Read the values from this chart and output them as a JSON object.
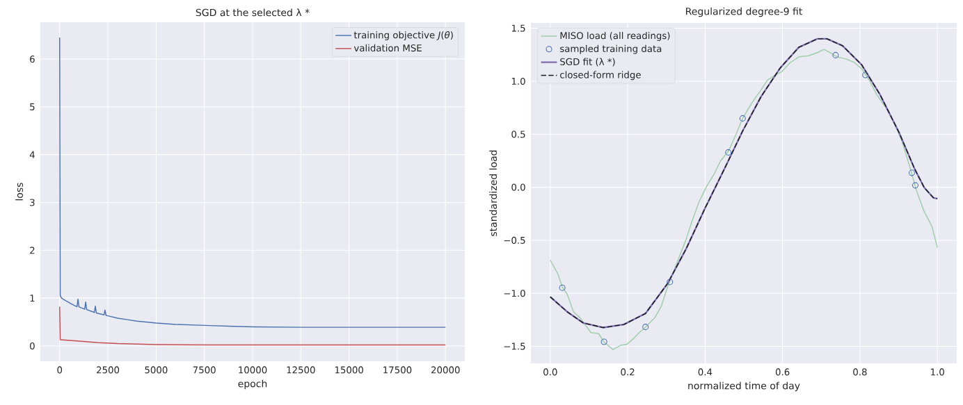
{
  "chart_data": [
    {
      "type": "line",
      "title": "SGD at the selected λ *",
      "xlabel": "epoch",
      "ylabel": "loss",
      "xlim": [
        -1000,
        21000
      ],
      "ylim": [
        -0.32,
        6.77
      ],
      "xticks": [
        0,
        2500,
        5000,
        7500,
        10000,
        12500,
        15000,
        17500,
        20000
      ],
      "yticks": [
        0,
        1,
        2,
        3,
        4,
        5,
        6
      ],
      "grid": true,
      "legend": "top right",
      "series": [
        {
          "name": "training objective *J*(*θ*)",
          "color": "#4c72b0",
          "x": [
            0,
            30,
            100,
            300,
            600,
            900,
            950,
            1000,
            1100,
            1300,
            1350,
            1400,
            1800,
            1850,
            1900,
            2300,
            2350,
            2400,
            2500,
            3000,
            3500,
            4000,
            5000,
            6000,
            7500,
            9000,
            10000,
            12500,
            15000,
            17500,
            20000
          ],
          "values": [
            6.45,
            1.05,
            1.0,
            0.95,
            0.88,
            0.82,
            0.98,
            0.82,
            0.8,
            0.77,
            0.92,
            0.76,
            0.7,
            0.83,
            0.69,
            0.65,
            0.75,
            0.64,
            0.63,
            0.58,
            0.55,
            0.52,
            0.48,
            0.45,
            0.43,
            0.41,
            0.4,
            0.39,
            0.39,
            0.39,
            0.39
          ]
        },
        {
          "name": "validation MSE",
          "color": "#c44e52",
          "x": [
            0,
            30,
            1000,
            2000,
            3000,
            4000,
            5000,
            7500,
            10000,
            15000,
            20000
          ],
          "values": [
            0.82,
            0.13,
            0.1,
            0.07,
            0.05,
            0.04,
            0.03,
            0.02,
            0.02,
            0.02,
            0.02
          ]
        }
      ]
    },
    {
      "type": "line",
      "title": "Regularized degree-9 fit",
      "xlabel": "normalized time of day",
      "ylabel": "standardized load",
      "xlim": [
        -0.05,
        1.05
      ],
      "ylim": [
        -1.66,
        1.55
      ],
      "xticks": [
        {
          "value": 0,
          "label": "0.0"
        },
        {
          "value": 0.2,
          "label": "0.2"
        },
        {
          "value": 0.4,
          "label": "0.4"
        },
        {
          "value": 0.6,
          "label": "0.6"
        },
        {
          "value": 0.8,
          "label": "0.8"
        },
        {
          "value": 1,
          "label": "1.0"
        }
      ],
      "yticks": [
        {
          "value": -1.5,
          "label": "−1.5"
        },
        {
          "value": -1,
          "label": "−1.0"
        },
        {
          "value": -0.5,
          "label": "−0.5"
        },
        {
          "value": 0,
          "label": "0.0"
        },
        {
          "value": 0.5,
          "label": "0.5"
        },
        {
          "value": 1,
          "label": "1.0"
        },
        {
          "value": 1.5,
          "label": "1.5"
        }
      ],
      "grid": true,
      "legend": "top left",
      "series": [
        {
          "name": "MISO load (all readings)",
          "type": "line",
          "color": "#9fcdab",
          "x": [
            0,
            0.02,
            0.031,
            0.044,
            0.06,
            0.077,
            0.093,
            0.105,
            0.125,
            0.139,
            0.162,
            0.182,
            0.198,
            0.214,
            0.23,
            0.246,
            0.27,
            0.287,
            0.303,
            0.319,
            0.335,
            0.351,
            0.367,
            0.384,
            0.404,
            0.424,
            0.44,
            0.46,
            0.48,
            0.497,
            0.513,
            0.529,
            0.545,
            0.561,
            0.582,
            0.598,
            0.618,
            0.642,
            0.667,
            0.69,
            0.707,
            0.723,
            0.74,
            0.764,
            0.784,
            0.804,
            0.824,
            0.844,
            0.869,
            0.889,
            0.909,
            0.929,
            0.945,
            0.966,
            0.986,
            1.0
          ],
          "values": [
            -0.685,
            -0.82,
            -0.94,
            -1.01,
            -1.175,
            -1.23,
            -1.31,
            -1.37,
            -1.38,
            -1.46,
            -1.53,
            -1.49,
            -1.48,
            -1.43,
            -1.37,
            -1.32,
            -1.23,
            -1.12,
            -0.94,
            -0.79,
            -0.64,
            -0.49,
            -0.31,
            -0.14,
            0.01,
            0.13,
            0.25,
            0.34,
            0.5,
            0.65,
            0.75,
            0.84,
            0.92,
            1.01,
            1.06,
            1.09,
            1.17,
            1.23,
            1.24,
            1.27,
            1.3,
            1.27,
            1.23,
            1.21,
            1.18,
            1.12,
            1.01,
            0.87,
            0.74,
            0.61,
            0.43,
            0.19,
            -0.02,
            -0.23,
            -0.37,
            -0.57
          ]
        },
        {
          "name": "sampled training data",
          "type": "scatter",
          "marker": "circle",
          "color": "#4c72b0",
          "x": [
            0.031,
            0.139,
            0.246,
            0.309,
            0.46,
            0.497,
            0.737,
            0.814,
            0.934,
            0.943
          ],
          "values": [
            -0.947,
            -1.457,
            -1.317,
            -0.893,
            0.329,
            0.65,
            1.246,
            1.059,
            0.136,
            0.018
          ]
        },
        {
          "name": "SGD fit (λ *)",
          "type": "line",
          "color": "#8172b3",
          "x": [
            0,
            0.044,
            0.085,
            0.137,
            0.19,
            0.246,
            0.303,
            0.351,
            0.4,
            0.448,
            0.497,
            0.545,
            0.594,
            0.642,
            0.69,
            0.715,
            0.755,
            0.804,
            0.852,
            0.901,
            0.941,
            0.966,
            0.99,
            1.0
          ],
          "values": [
            -1.033,
            -1.175,
            -1.279,
            -1.323,
            -1.294,
            -1.19,
            -0.908,
            -0.58,
            -0.196,
            0.16,
            0.531,
            0.858,
            1.125,
            1.32,
            1.4,
            1.4,
            1.335,
            1.157,
            0.872,
            0.516,
            0.175,
            -0.003,
            -0.1,
            -0.107
          ]
        },
        {
          "name": "closed-form ridge",
          "type": "line",
          "line_style": "dashed",
          "color": "#1a1a1a",
          "x": [
            0,
            0.044,
            0.085,
            0.137,
            0.19,
            0.246,
            0.303,
            0.351,
            0.4,
            0.448,
            0.497,
            0.545,
            0.594,
            0.642,
            0.69,
            0.715,
            0.755,
            0.804,
            0.852,
            0.901,
            0.941,
            0.966,
            0.99,
            1.0
          ],
          "values": [
            -1.033,
            -1.175,
            -1.279,
            -1.323,
            -1.294,
            -1.19,
            -0.908,
            -0.58,
            -0.196,
            0.16,
            0.531,
            0.858,
            1.125,
            1.32,
            1.4,
            1.4,
            1.335,
            1.157,
            0.872,
            0.516,
            0.175,
            -0.003,
            -0.1,
            -0.107
          ]
        }
      ]
    }
  ]
}
